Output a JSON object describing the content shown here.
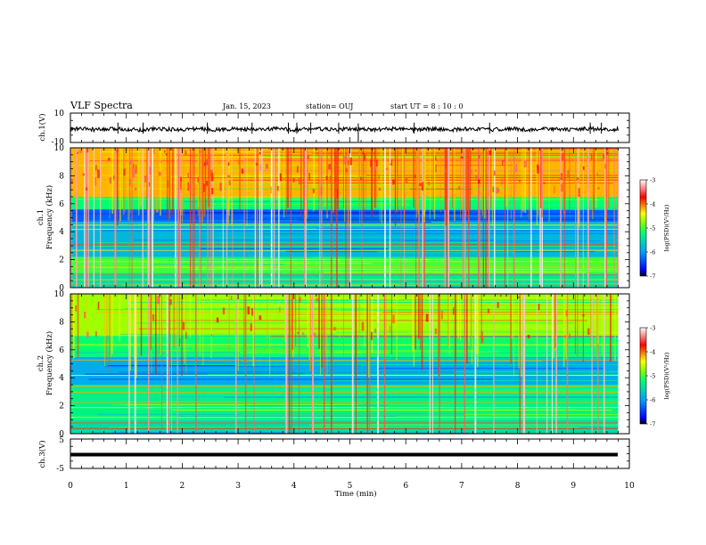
{
  "header": {
    "title": "VLF Spectra",
    "date": "Jan. 15, 2023",
    "station": "station= OUJ",
    "start_ut": "start UT =  8 : 10 : 0"
  },
  "panels": {
    "ch1_wave": {
      "ylabel": "ch.1(V)",
      "yticks": [
        "10",
        "-10"
      ],
      "ylim": [
        -10,
        10
      ]
    },
    "ch1_spec": {
      "ylabel": "ch.1",
      "ylabel2": "Frequency (kHz)",
      "yticks": [
        "0",
        "2",
        "4",
        "6",
        "8",
        "10"
      ]
    },
    "ch2_spec": {
      "ylabel": "ch.2",
      "ylabel2": "Frequency (kHz)",
      "yticks": [
        "0",
        "2",
        "4",
        "6",
        "8",
        "10"
      ]
    },
    "ch3_wave": {
      "ylabel": "ch.3(V)",
      "yticks": [
        "5",
        "-5"
      ],
      "ylim": [
        -5,
        5
      ]
    }
  },
  "xaxis": {
    "label": "Time (min)",
    "ticks": [
      "0",
      "1",
      "2",
      "3",
      "4",
      "5",
      "6",
      "7",
      "8",
      "9",
      "10"
    ]
  },
  "colorbar": {
    "label": "log(PSD)(V²/Hz)",
    "ticks": [
      "-3",
      "-4",
      "-5",
      "-6",
      "-7"
    ]
  },
  "chart_data": {
    "type": "heatmap",
    "title": "VLF Spectra",
    "xlabel": "Time (min)",
    "xlim": [
      0,
      10
    ],
    "data_extent_min": 9.8,
    "ylabel": "Frequency (kHz)",
    "ylim": [
      0,
      10
    ],
    "color_scale": {
      "label": "log(PSD)(V²/Hz)",
      "range": [
        -7,
        -3
      ],
      "colors": [
        "#000000",
        "#0000ff",
        "#00a0ff",
        "#00ff70",
        "#80ff00",
        "#ffff00",
        "#ff0000",
        "#ffffff"
      ]
    },
    "series": [
      {
        "name": "ch.1(V)",
        "kind": "waveform",
        "ylim": [
          -10,
          10
        ],
        "baseline": -1,
        "spikes_min": [
          0.85,
          1.3,
          2.45,
          3.25,
          3.9,
          4.05,
          4.3,
          4.8,
          5.15,
          6.15,
          7.5,
          9.3,
          9.5
        ]
      },
      {
        "name": "ch.1",
        "kind": "spectrogram",
        "approx_log_psd_by_band": [
          {
            "band_khz": [
              0,
              1
            ],
            "level": -5.5
          },
          {
            "band_khz": [
              1,
              2.2
            ],
            "level": -5.0
          },
          {
            "band_khz": [
              2.2,
              4.7
            ],
            "level": -5.8
          },
          {
            "band_khz": [
              4.7,
              5.6
            ],
            "level": -6.3
          },
          {
            "band_khz": [
              5.6,
              6.5
            ],
            "level": -5.2
          },
          {
            "band_khz": [
              6.5,
              10
            ],
            "level": -4.2
          }
        ]
      },
      {
        "name": "ch.2",
        "kind": "spectrogram",
        "approx_log_psd_by_band": [
          {
            "band_khz": [
              0,
              1
            ],
            "level": -5.5
          },
          {
            "band_khz": [
              1,
              3.5
            ],
            "level": -5.3
          },
          {
            "band_khz": [
              3.5,
              5.5
            ],
            "level": -5.9
          },
          {
            "band_khz": [
              5.5,
              7
            ],
            "level": -5.2
          },
          {
            "band_khz": [
              7,
              10
            ],
            "level": -4.7
          }
        ]
      },
      {
        "name": "ch.3(V)",
        "kind": "waveform",
        "ylim": [
          -5,
          5
        ],
        "value": -1.2
      }
    ]
  }
}
